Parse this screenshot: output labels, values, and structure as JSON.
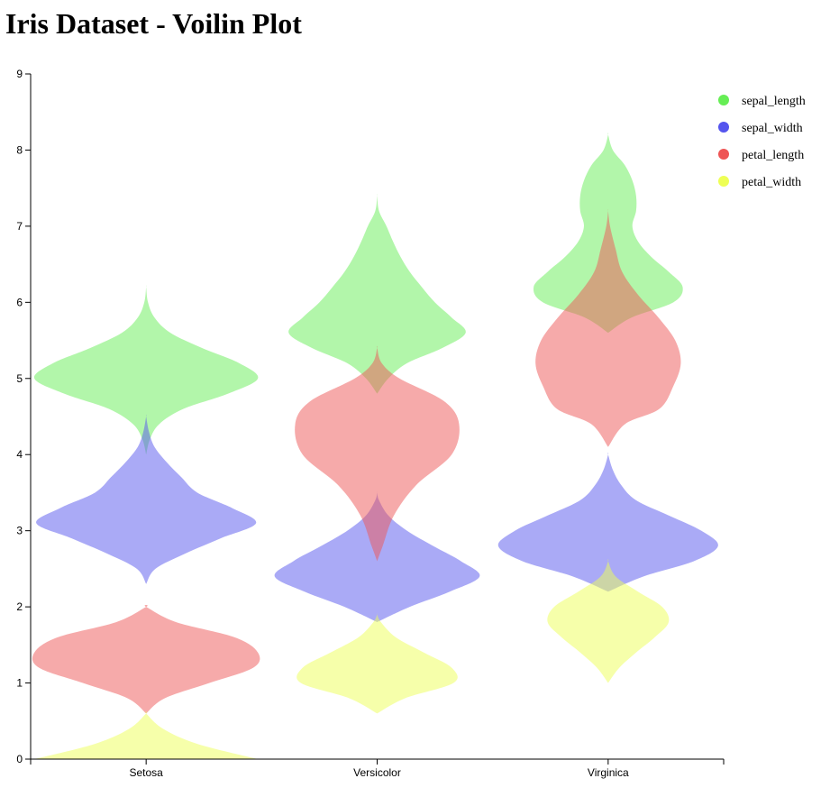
{
  "title": "Iris Dataset - Voilin Plot",
  "chart_data": {
    "type": "violin",
    "categories": [
      "Setosa",
      "Versicolor",
      "Virginica"
    ],
    "ylim": [
      0,
      9
    ],
    "yticks": [
      0,
      1,
      2,
      3,
      4,
      5,
      6,
      7,
      8,
      9
    ],
    "grid": false,
    "legend_position": "top-right",
    "series": [
      {
        "name": "sepal_length",
        "color": "#66ee55",
        "violins": [
          [
            [
              4.0,
              0
            ],
            [
              4.2,
              4
            ],
            [
              4.4,
              14
            ],
            [
              4.6,
              40
            ],
            [
              4.8,
              88
            ],
            [
              5.0,
              120
            ],
            [
              5.2,
              100
            ],
            [
              5.4,
              60
            ],
            [
              5.6,
              26
            ],
            [
              5.8,
              9
            ],
            [
              6.0,
              2
            ],
            [
              6.2,
              0
            ]
          ],
          [
            [
              4.8,
              0
            ],
            [
              5.0,
              12
            ],
            [
              5.2,
              32
            ],
            [
              5.4,
              70
            ],
            [
              5.6,
              95
            ],
            [
              5.8,
              80
            ],
            [
              6.0,
              62
            ],
            [
              6.2,
              48
            ],
            [
              6.4,
              35
            ],
            [
              6.6,
              25
            ],
            [
              6.8,
              17
            ],
            [
              7.0,
              10
            ],
            [
              7.2,
              2
            ],
            [
              7.4,
              0
            ]
          ],
          [
            [
              5.6,
              0
            ],
            [
              5.8,
              25
            ],
            [
              6.0,
              70
            ],
            [
              6.2,
              80
            ],
            [
              6.4,
              65
            ],
            [
              6.6,
              46
            ],
            [
              6.8,
              32
            ],
            [
              7.0,
              26
            ],
            [
              7.2,
              30
            ],
            [
              7.4,
              30
            ],
            [
              7.6,
              26
            ],
            [
              7.8,
              18
            ],
            [
              8.0,
              5
            ],
            [
              8.2,
              0
            ]
          ]
        ]
      },
      {
        "name": "sepal_width",
        "color": "#5555ee",
        "violins": [
          [
            [
              2.3,
              0
            ],
            [
              2.5,
              10
            ],
            [
              2.7,
              42
            ],
            [
              2.9,
              80
            ],
            [
              3.1,
              118
            ],
            [
              3.3,
              92
            ],
            [
              3.5,
              55
            ],
            [
              3.7,
              38
            ],
            [
              3.9,
              22
            ],
            [
              4.1,
              9
            ],
            [
              4.3,
              3
            ],
            [
              4.5,
              0
            ]
          ],
          [
            [
              1.8,
              0
            ],
            [
              2.0,
              35
            ],
            [
              2.2,
              78
            ],
            [
              2.4,
              110
            ],
            [
              2.6,
              90
            ],
            [
              2.8,
              60
            ],
            [
              3.0,
              32
            ],
            [
              3.2,
              12
            ],
            [
              3.4,
              2
            ],
            [
              3.5,
              0
            ]
          ],
          [
            [
              2.2,
              0
            ],
            [
              2.4,
              38
            ],
            [
              2.6,
              92
            ],
            [
              2.8,
              118
            ],
            [
              3.0,
              100
            ],
            [
              3.2,
              65
            ],
            [
              3.4,
              30
            ],
            [
              3.6,
              14
            ],
            [
              3.8,
              5
            ],
            [
              4.0,
              0
            ]
          ]
        ]
      },
      {
        "name": "petal_length",
        "color": "#ee5555",
        "violins": [
          [
            [
              0.6,
              0
            ],
            [
              0.8,
              20
            ],
            [
              1.0,
              68
            ],
            [
              1.2,
              115
            ],
            [
              1.4,
              120
            ],
            [
              1.6,
              95
            ],
            [
              1.8,
              32
            ],
            [
              2.0,
              0
            ]
          ],
          [
            [
              2.6,
              0
            ],
            [
              2.8,
              6
            ],
            [
              3.2,
              18
            ],
            [
              3.6,
              42
            ],
            [
              4.0,
              80
            ],
            [
              4.4,
              88
            ],
            [
              4.7,
              72
            ],
            [
              5.0,
              24
            ],
            [
              5.2,
              5
            ],
            [
              5.4,
              0
            ]
          ],
          [
            [
              4.1,
              0
            ],
            [
              4.4,
              18
            ],
            [
              4.6,
              55
            ],
            [
              4.9,
              70
            ],
            [
              5.2,
              78
            ],
            [
              5.5,
              72
            ],
            [
              5.8,
              54
            ],
            [
              6.1,
              32
            ],
            [
              6.4,
              15
            ],
            [
              6.7,
              8
            ],
            [
              7.0,
              2
            ],
            [
              7.2,
              0
            ]
          ]
        ]
      },
      {
        "name": "petal_width",
        "color": "#eeff55",
        "violins": [
          [
            [
              0.0,
              120
            ],
            [
              0.2,
              55
            ],
            [
              0.4,
              18
            ],
            [
              0.6,
              0
            ]
          ],
          [
            [
              0.6,
              0
            ],
            [
              0.8,
              30
            ],
            [
              1.0,
              82
            ],
            [
              1.2,
              80
            ],
            [
              1.4,
              50
            ],
            [
              1.6,
              20
            ],
            [
              1.8,
              4
            ],
            [
              1.9,
              0
            ]
          ],
          [
            [
              1.0,
              0
            ],
            [
              1.2,
              12
            ],
            [
              1.4,
              30
            ],
            [
              1.6,
              50
            ],
            [
              1.8,
              65
            ],
            [
              2.0,
              58
            ],
            [
              2.2,
              32
            ],
            [
              2.4,
              8
            ],
            [
              2.6,
              0
            ]
          ]
        ]
      }
    ]
  }
}
